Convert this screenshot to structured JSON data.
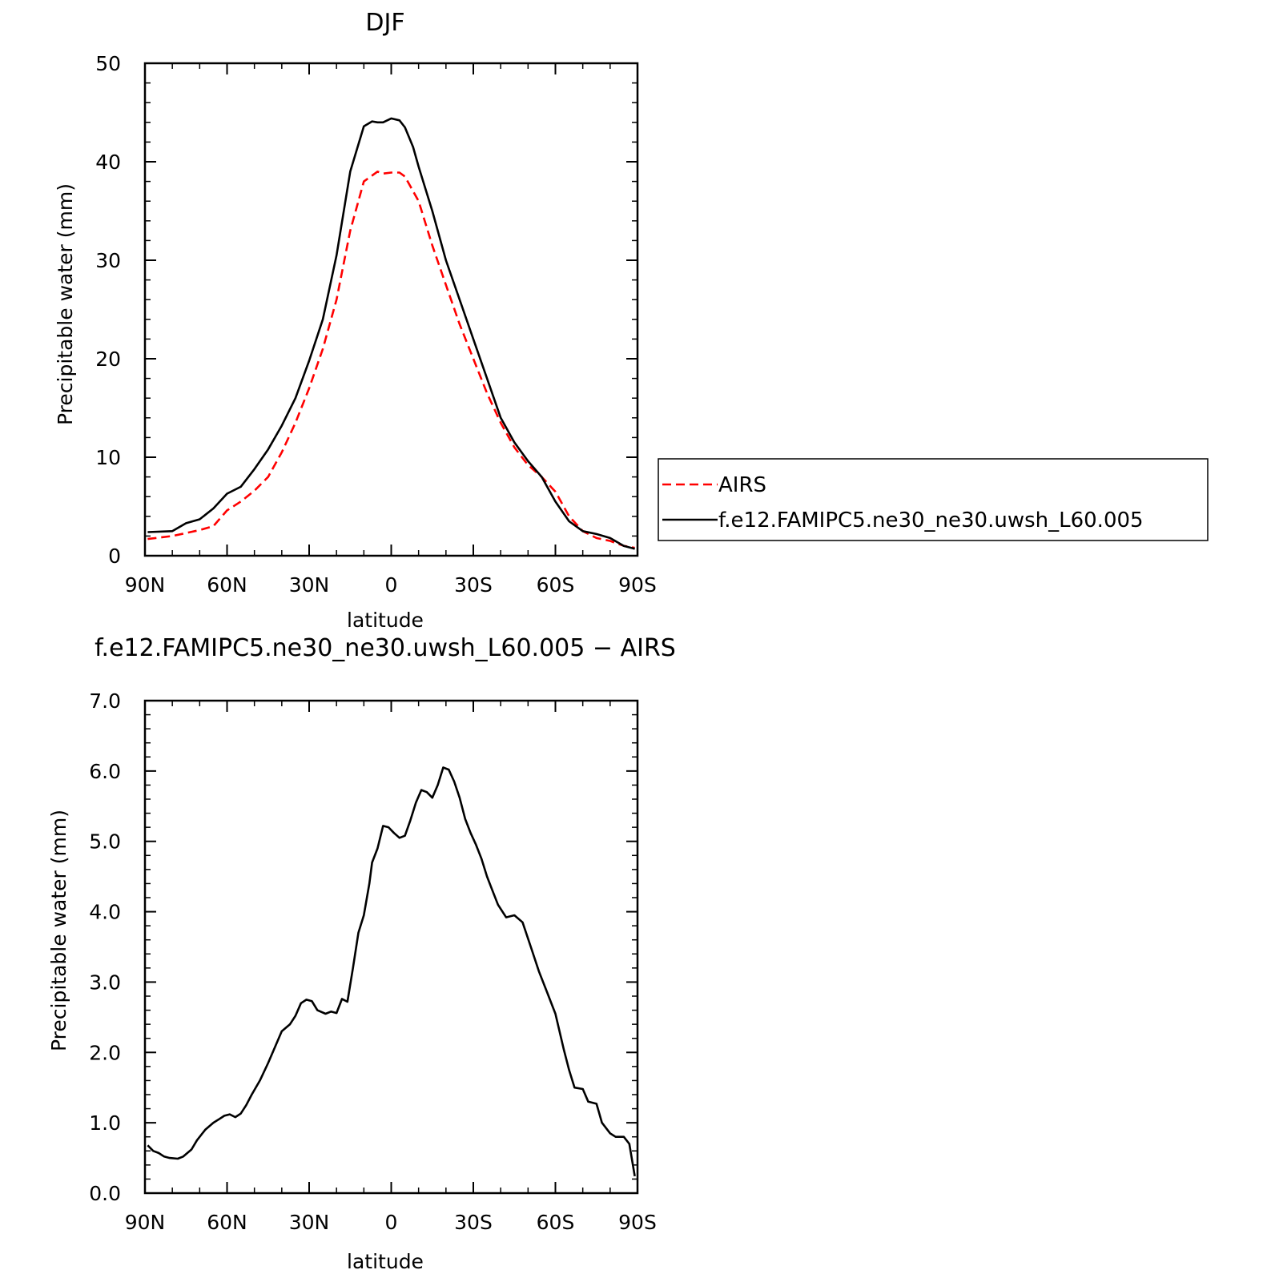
{
  "chart_data": [
    {
      "type": "line",
      "title": "DJF",
      "xlabel": "latitude",
      "ylabel": "Precipitable water (mm)",
      "xlim": [
        90,
        -90
      ],
      "ylim": [
        0,
        50
      ],
      "x_ticks": [
        90,
        60,
        30,
        0,
        -30,
        -60,
        -90
      ],
      "x_tick_labels": [
        "90N",
        "60N",
        "30N",
        "0",
        "30S",
        "60S",
        "90S"
      ],
      "y_ticks": [
        0,
        10,
        20,
        30,
        40,
        50
      ],
      "y_tick_labels": [
        "0",
        "10",
        "20",
        "30",
        "40",
        "50"
      ],
      "legend": {
        "placement": "right"
      },
      "series": [
        {
          "name": "AIRS",
          "color": "#ff0000",
          "dash": "dashed",
          "x": [
            89,
            80,
            70,
            65,
            60,
            55,
            50,
            45,
            40,
            35,
            30,
            25,
            20,
            15,
            10,
            5,
            3,
            0,
            -3,
            -5,
            -10,
            -15,
            -20,
            -25,
            -30,
            -35,
            -40,
            -45,
            -50,
            -55,
            -60,
            -65,
            -70,
            -75,
            -80,
            -85,
            -89
          ],
          "y": [
            1.7,
            2.0,
            2.6,
            3.0,
            4.6,
            5.5,
            6.6,
            8.0,
            10.5,
            13.5,
            17.0,
            21.0,
            26.0,
            33.0,
            38.0,
            39.0,
            38.8,
            38.9,
            38.9,
            38.5,
            36.0,
            31.5,
            27.5,
            23.5,
            20.0,
            16.5,
            13.5,
            11.0,
            9.2,
            8.0,
            6.5,
            4.0,
            2.5,
            1.8,
            1.5,
            1.0,
            0.8
          ]
        },
        {
          "name": "f.e12.FAMIPC5.ne30_ne30.uwsh_L60.005",
          "color": "#000000",
          "dash": "solid",
          "x": [
            89,
            80,
            75,
            70,
            65,
            60,
            55,
            50,
            45,
            40,
            35,
            30,
            25,
            20,
            15,
            10,
            7,
            5,
            3,
            0,
            -3,
            -5,
            -8,
            -10,
            -15,
            -20,
            -25,
            -30,
            -35,
            -40,
            -45,
            -50,
            -55,
            -60,
            -65,
            -70,
            -75,
            -80,
            -85,
            -89
          ],
          "y": [
            2.4,
            2.5,
            3.3,
            3.7,
            4.8,
            6.3,
            7.0,
            8.8,
            10.8,
            13.2,
            16.0,
            19.8,
            24.0,
            30.5,
            39.0,
            43.6,
            44.1,
            44.0,
            44.0,
            44.4,
            44.2,
            43.5,
            41.5,
            39.5,
            35.0,
            30.0,
            26.0,
            22.0,
            18.0,
            14.0,
            11.5,
            9.6,
            8.0,
            5.5,
            3.5,
            2.5,
            2.2,
            1.8,
            1.0,
            0.7
          ]
        }
      ]
    },
    {
      "type": "line",
      "title": "f.e12.FAMIPC5.ne30_ne30.uwsh_L60.005 − AIRS",
      "xlabel": "latitude",
      "ylabel": "Precipitable water (mm)",
      "xlim": [
        90,
        -90
      ],
      "ylim": [
        0.0,
        7.0
      ],
      "x_ticks": [
        90,
        60,
        30,
        0,
        -30,
        -60,
        -90
      ],
      "x_tick_labels": [
        "90N",
        "60N",
        "30N",
        "0",
        "30S",
        "60S",
        "90S"
      ],
      "y_ticks": [
        0,
        1,
        2,
        3,
        4,
        5,
        6,
        7
      ],
      "y_tick_labels": [
        "0.0",
        "1.0",
        "2.0",
        "3.0",
        "4.0",
        "5.0",
        "6.0",
        "7.0"
      ],
      "series": [
        {
          "name": "",
          "color": "#000000",
          "dash": "solid",
          "x": [
            89,
            87,
            85,
            83,
            81,
            78,
            76,
            73,
            71,
            68,
            65,
            63,
            61,
            59,
            57,
            55,
            53,
            51,
            48,
            45,
            42,
            40,
            37,
            35,
            33,
            31,
            29,
            27,
            24,
            22,
            20,
            18,
            16,
            14,
            12,
            10,
            8,
            7,
            5,
            3,
            1,
            -1,
            -3,
            -5,
            -7,
            -9,
            -11,
            -13,
            -15,
            -17,
            -19,
            -21,
            -23,
            -25,
            -27,
            -29,
            -31,
            -33,
            -35,
            -37,
            -39,
            -42,
            -45,
            -48,
            -51,
            -54,
            -57,
            -60,
            -63,
            -65,
            -67,
            -70,
            -72,
            -75,
            -77,
            -80,
            -82,
            -85,
            -87,
            -89
          ],
          "y": [
            0.68,
            0.6,
            0.57,
            0.52,
            0.5,
            0.49,
            0.52,
            0.62,
            0.75,
            0.9,
            1.0,
            1.05,
            1.1,
            1.12,
            1.08,
            1.13,
            1.25,
            1.4,
            1.6,
            1.85,
            2.12,
            2.3,
            2.4,
            2.52,
            2.7,
            2.75,
            2.73,
            2.6,
            2.55,
            2.58,
            2.56,
            2.76,
            2.72,
            3.2,
            3.7,
            3.95,
            4.4,
            4.7,
            4.9,
            5.22,
            5.2,
            5.12,
            5.05,
            5.08,
            5.3,
            5.55,
            5.73,
            5.7,
            5.62,
            5.8,
            6.05,
            6.02,
            5.85,
            5.62,
            5.32,
            5.12,
            4.95,
            4.75,
            4.5,
            4.3,
            4.1,
            3.92,
            3.95,
            3.85,
            3.5,
            3.15,
            2.85,
            2.55,
            2.05,
            1.75,
            1.5,
            1.48,
            1.3,
            1.27,
            1.0,
            0.85,
            0.8,
            0.8,
            0.7,
            0.24
          ]
        }
      ]
    }
  ]
}
